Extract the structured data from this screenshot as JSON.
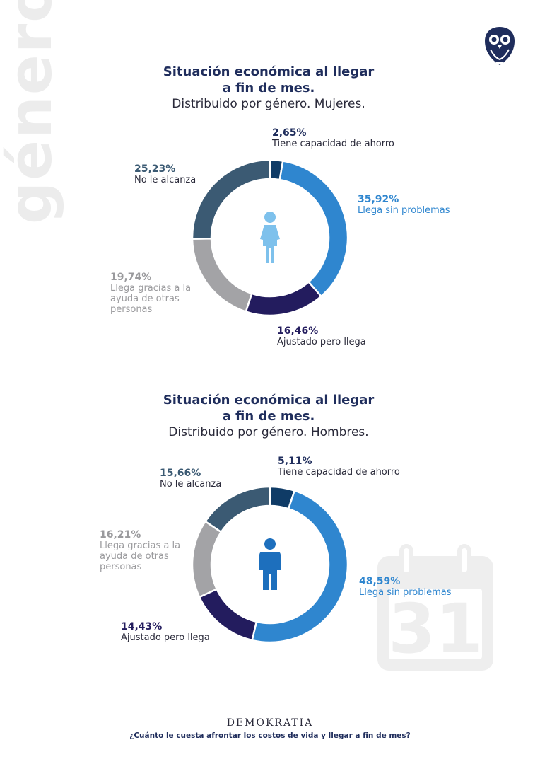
{
  "side_word": "género",
  "charts_meta": {
    "colors": [
      "#0f3b66",
      "#2f86cf",
      "#231c5e",
      "#a3a3a6",
      "#3b5a73"
    ],
    "female_icon_color": "#7ec1ec",
    "male_icon_color": "#1d6fbd",
    "brand_color": "#1f2d5c",
    "icons": [
      "owl-logo-icon",
      "female-person-icon",
      "male-person-icon",
      "calendar-31-icon"
    ]
  },
  "chart_data": [
    {
      "type": "pie",
      "title": "Situación económica al llegar a fin de mes.",
      "subtitle": "Distribuido por género. Mujeres.",
      "categories": [
        "Tiene capacidad de ahorro",
        "Llega sin problemas",
        "Ajustado pero llega",
        "Llega gracias a la ayuda de otras personas",
        "No le alcanza"
      ],
      "values": [
        2.65,
        35.92,
        16.46,
        19.74,
        25.23
      ],
      "labels": [
        "2,65%",
        "35,92%",
        "16,46%",
        "19,74%",
        "25,23%"
      ],
      "label_colors": [
        "#1f2d5c",
        "#2f86cf",
        "#231c5e",
        "#9a9a9d",
        "#3b5a73"
      ]
    },
    {
      "type": "pie",
      "title": "Situación económica al llegar a fin de mes.",
      "subtitle": "Distribuido por género. Hombres.",
      "categories": [
        "Tiene capacidad de ahorro",
        "Llega sin problemas",
        "Ajustado pero llega",
        "Llega gracias a la ayuda de otras personas",
        "No le alcanza"
      ],
      "values": [
        5.11,
        48.59,
        14.43,
        16.21,
        15.66
      ],
      "labels": [
        "5,11%",
        "48,59%",
        "14,43%",
        "16,21%",
        "15,66%"
      ],
      "label_colors": [
        "#1f2d5c",
        "#2f86cf",
        "#231c5e",
        "#9a9a9d",
        "#3b5a73"
      ]
    }
  ],
  "calendar": {
    "day": "31"
  },
  "footer": {
    "brand": "DEMOKRATIA",
    "question": "¿Cuánto le cuesta afrontar los costos de vida y llegar a fin de mes?"
  }
}
